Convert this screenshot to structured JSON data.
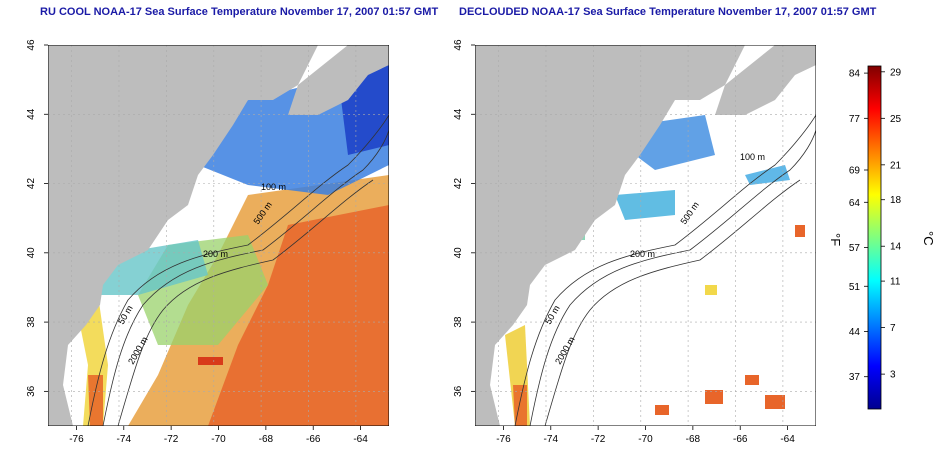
{
  "panels": [
    {
      "title": "RU COOL NOAA-17 Sea Surface Temperature November 17, 2007 01:57 GMT"
    },
    {
      "title": "DECLOUDED NOAA-17 Sea Surface Temperature November 17, 2007 01:57 GMT"
    }
  ],
  "map": {
    "x_ticks": [
      "-76",
      "-74",
      "-72",
      "-70",
      "-68",
      "-66",
      "-64"
    ],
    "y_ticks": [
      "46",
      "44",
      "42",
      "40",
      "38",
      "36"
    ],
    "x_range": [
      -77.2,
      -62.8
    ],
    "y_range": [
      35,
      46
    ],
    "contour_labels": [
      "100 m",
      "200 m",
      "500 m",
      "50 m",
      "2000 m"
    ],
    "colors": {
      "land": "#bdbdbd",
      "cloud": "#ffffff",
      "contour": "#333333"
    }
  },
  "colorbar": {
    "fahrenheit_label": "°F",
    "celsius_label": "°C",
    "fahrenheit_ticks": [
      "84",
      "77",
      "69",
      "64",
      "57",
      "51",
      "44",
      "37"
    ],
    "celsius_ticks": [
      "29",
      "25",
      "21",
      "18",
      "14",
      "11",
      "7",
      "3"
    ]
  }
}
